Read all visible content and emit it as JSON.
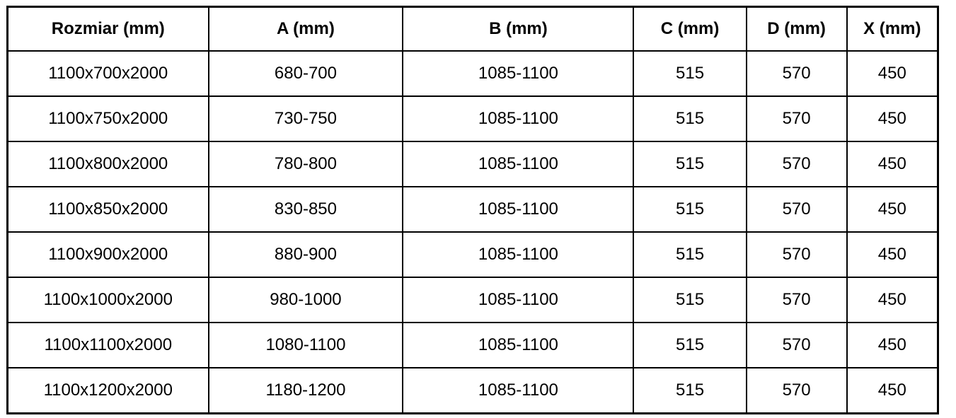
{
  "table": {
    "name": "size-specification-table",
    "columns": [
      {
        "key": "rozmiar",
        "label": "Rozmiar (mm)"
      },
      {
        "key": "a",
        "label": "A (mm)"
      },
      {
        "key": "b",
        "label": "B (mm)"
      },
      {
        "key": "c",
        "label": "C (mm)"
      },
      {
        "key": "d",
        "label": "D (mm)"
      },
      {
        "key": "x",
        "label": "X (mm)"
      }
    ],
    "rows": [
      [
        "1100x700x2000",
        "680-700",
        "1085-1100",
        "515",
        "570",
        "450"
      ],
      [
        "1100x750x2000",
        "730-750",
        "1085-1100",
        "515",
        "570",
        "450"
      ],
      [
        "1100x800x2000",
        "780-800",
        "1085-1100",
        "515",
        "570",
        "450"
      ],
      [
        "1100x850x2000",
        "830-850",
        "1085-1100",
        "515",
        "570",
        "450"
      ],
      [
        "1100x900x2000",
        "880-900",
        "1085-1100",
        "515",
        "570",
        "450"
      ],
      [
        "1100x1000x2000",
        "980-1000",
        "1085-1100",
        "515",
        "570",
        "450"
      ],
      [
        "1100x1100x2000",
        "1080-1100",
        "1085-1100",
        "515",
        "570",
        "450"
      ],
      [
        "1100x1200x2000",
        "1180-1200",
        "1085-1100",
        "515",
        "570",
        "450"
      ]
    ],
    "colors": {
      "border": "#000000",
      "text": "#000000",
      "background": "#ffffff"
    }
  }
}
